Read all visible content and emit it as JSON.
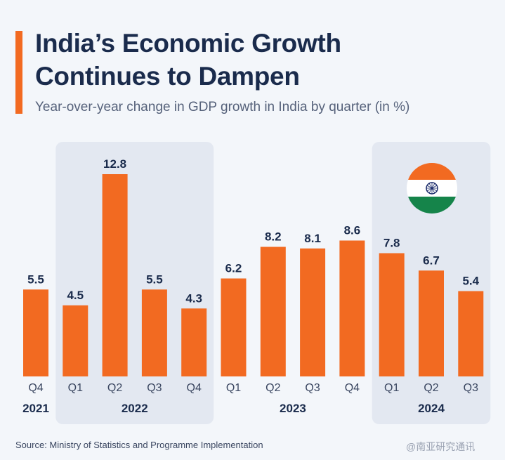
{
  "header": {
    "title_line1": "India’s Economic Growth",
    "title_line2": "Continues to Dampen",
    "subtitle": "Year-over-year change in GDP growth in India by quarter (in %)"
  },
  "chart_data": {
    "type": "bar",
    "title": "India’s Economic Growth Continues to Dampen",
    "subtitle": "Year-over-year change in GDP growth in India by quarter (in %)",
    "categories": [
      "Q4",
      "Q1",
      "Q2",
      "Q3",
      "Q4",
      "Q1",
      "Q2",
      "Q3",
      "Q4",
      "Q1",
      "Q2",
      "Q3"
    ],
    "values": [
      5.5,
      4.5,
      12.8,
      5.5,
      4.3,
      6.2,
      8.2,
      8.1,
      8.6,
      7.8,
      6.7,
      5.4
    ],
    "years": [
      {
        "label": "2021",
        "count": 1,
        "shaded": false
      },
      {
        "label": "2022",
        "count": 4,
        "shaded": true
      },
      {
        "label": "2023",
        "count": 4,
        "shaded": false
      },
      {
        "label": "2024",
        "count": 3,
        "shaded": true
      }
    ],
    "ylim": [
      0,
      12.8
    ],
    "bar_color": "#f26a21",
    "xlabel": "",
    "ylabel": ""
  },
  "footer": {
    "source": "Source: Ministry of Statistics and Programme Implementation",
    "watermark": "@南亚研究通讯"
  },
  "colors": {
    "accent": "#f26a21",
    "title": "#1a2b4c",
    "band": "#e3e8f1",
    "background": "#f3f6fa",
    "flag_saffron": "#f26a21",
    "flag_white": "#ffffff",
    "flag_green": "#15844a",
    "flag_chakra": "#1a2b6b"
  },
  "icons": {
    "flag": "india-flag-icon"
  }
}
